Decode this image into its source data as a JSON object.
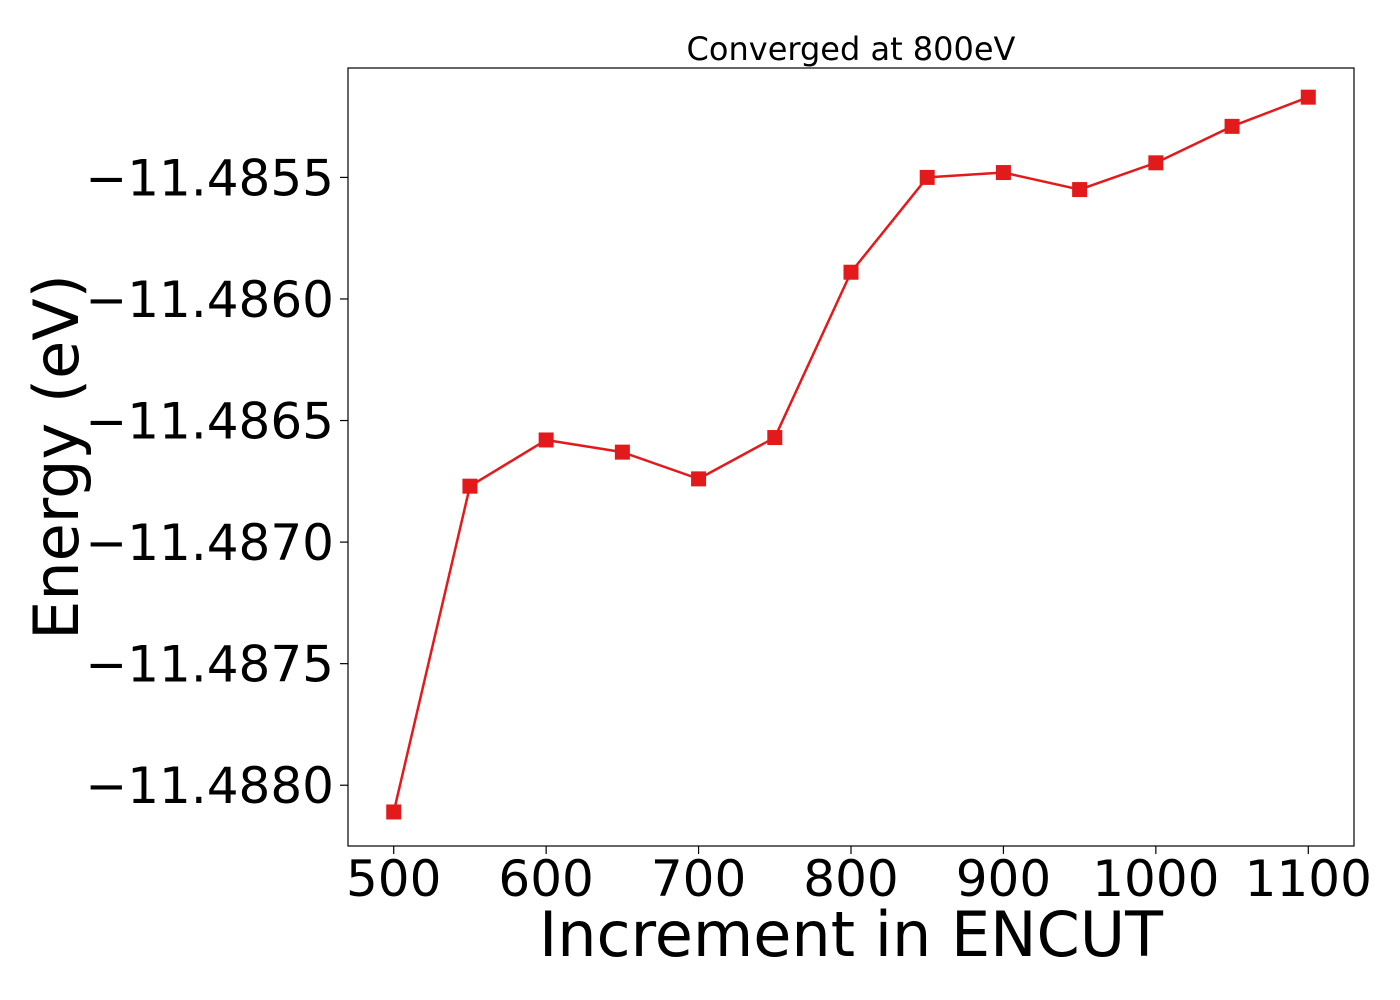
{
  "chart_data": {
    "type": "line",
    "title": "Converged at 800eV",
    "xlabel": "Increment in ENCUT",
    "ylabel": "Energy (eV)",
    "xlim": [
      470,
      1130
    ],
    "ylim": [
      -11.48825,
      -11.48505
    ],
    "xticks": [
      500,
      600,
      700,
      800,
      900,
      1000,
      1100
    ],
    "yticks": [
      -11.488,
      -11.4875,
      -11.487,
      -11.4865,
      -11.486,
      -11.4855
    ],
    "ytick_labels": [
      "−11.4880",
      "−11.4875",
      "−11.4870",
      "−11.4865",
      "−11.4860",
      "−11.4855"
    ],
    "grid": false,
    "series": [
      {
        "color": "#e31a1c",
        "marker": "square",
        "x": [
          500,
          550,
          600,
          650,
          700,
          750,
          800,
          850,
          900,
          950,
          1000,
          1050,
          1100
        ],
        "y": [
          -11.48811,
          -11.48677,
          -11.48658,
          -11.48663,
          -11.48674,
          -11.48657,
          -11.48589,
          -11.4855,
          -11.48548,
          -11.48555,
          -11.48544,
          -11.48529,
          -11.48517
        ]
      }
    ]
  }
}
